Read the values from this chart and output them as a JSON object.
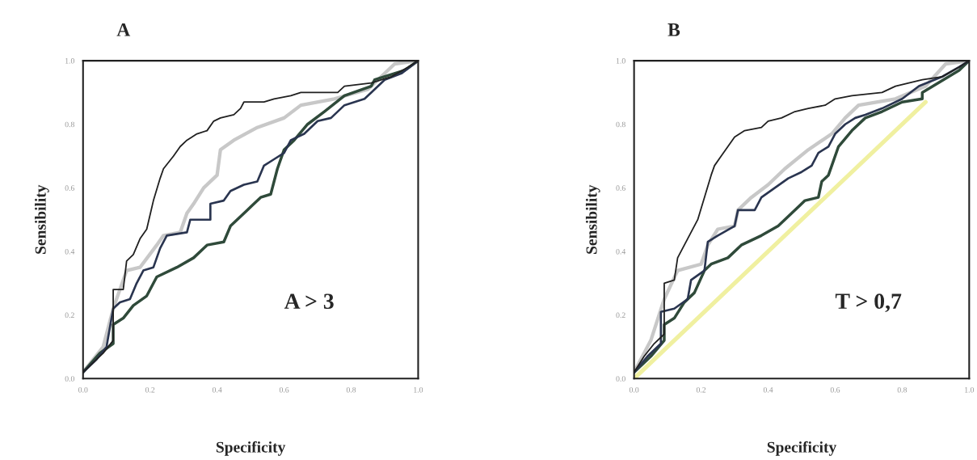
{
  "chart_data": [
    {
      "type": "line",
      "title": "A",
      "xlabel": "Specificity",
      "ylabel": "Sensibility",
      "annotations": [
        "A > 3"
      ],
      "xlim": [
        0,
        1
      ],
      "ylim": [
        0,
        1
      ],
      "xticks": [
        {
          "value": 0,
          "label": "0.0"
        },
        {
          "value": 0.2,
          "label": "0.2"
        },
        {
          "value": 0.4,
          "label": "0.4"
        },
        {
          "value": 0.6,
          "label": "0.6"
        },
        {
          "value": 0.8,
          "label": "0.8"
        },
        {
          "value": 1,
          "label": "1.0"
        }
      ],
      "yticks": [
        {
          "value": 0,
          "label": "0.0"
        },
        {
          "value": 0.2,
          "label": "0.2"
        },
        {
          "value": 0.4,
          "label": "0.4"
        },
        {
          "value": 0.6,
          "label": "0.6"
        },
        {
          "value": 0.8,
          "label": "0.8"
        },
        {
          "value": 1,
          "label": "1.0"
        }
      ],
      "grid": false,
      "legend": false,
      "series": [
        {
          "color": "#c8c8c8",
          "x": [
            0,
            0.06,
            0.09,
            0.13,
            0.17,
            0.22,
            0.24,
            0.29,
            0.31,
            0.33,
            0.36,
            0.4,
            0.41,
            0.45,
            0.52,
            0.6,
            0.65,
            0.75,
            0.85,
            0.93,
            1
          ],
          "values": [
            0.02,
            0.1,
            0.22,
            0.34,
            0.35,
            0.42,
            0.45,
            0.46,
            0.52,
            0.55,
            0.6,
            0.64,
            0.72,
            0.75,
            0.79,
            0.82,
            0.86,
            0.88,
            0.91,
            0.99,
            1
          ]
        },
        {
          "color": "#2f4a3a",
          "x": [
            0,
            0.05,
            0.09,
            0.09,
            0.12,
            0.15,
            0.19,
            0.22,
            0.28,
            0.33,
            0.37,
            0.42,
            0.44,
            0.49,
            0.53,
            0.56,
            0.58,
            0.6,
            0.63,
            0.67,
            0.72,
            0.78,
            0.86,
            0.87,
            0.96,
            1
          ],
          "values": [
            0.02,
            0.08,
            0.11,
            0.17,
            0.19,
            0.23,
            0.26,
            0.32,
            0.35,
            0.38,
            0.42,
            0.43,
            0.48,
            0.53,
            0.57,
            0.58,
            0.66,
            0.72,
            0.75,
            0.8,
            0.84,
            0.89,
            0.92,
            0.94,
            0.97,
            1
          ]
        },
        {
          "color": "#2a3550",
          "x": [
            0,
            0.04,
            0.07,
            0.09,
            0.11,
            0.14,
            0.16,
            0.18,
            0.21,
            0.23,
            0.25,
            0.31,
            0.32,
            0.38,
            0.38,
            0.42,
            0.44,
            0.48,
            0.52,
            0.54,
            0.57,
            0.6,
            0.62,
            0.66,
            0.7,
            0.74,
            0.78,
            0.84,
            0.86,
            0.9,
            0.95,
            1
          ],
          "values": [
            0.02,
            0.06,
            0.1,
            0.22,
            0.24,
            0.25,
            0.3,
            0.34,
            0.35,
            0.41,
            0.45,
            0.46,
            0.5,
            0.5,
            0.55,
            0.56,
            0.59,
            0.61,
            0.62,
            0.67,
            0.69,
            0.71,
            0.75,
            0.77,
            0.81,
            0.82,
            0.86,
            0.88,
            0.9,
            0.94,
            0.96,
            1
          ]
        },
        {
          "color": "#202020",
          "x": [
            0,
            0.03,
            0.06,
            0.09,
            0.09,
            0.12,
            0.13,
            0.15,
            0.17,
            0.19,
            0.21,
            0.23,
            0.24,
            0.27,
            0.29,
            0.31,
            0.34,
            0.37,
            0.39,
            0.41,
            0.45,
            0.47,
            0.48,
            0.54,
            0.57,
            0.62,
            0.65,
            0.76,
            0.78,
            0.86,
            0.92,
            0.97,
            1
          ],
          "values": [
            0.02,
            0.05,
            0.08,
            0.12,
            0.28,
            0.28,
            0.37,
            0.39,
            0.44,
            0.47,
            0.56,
            0.63,
            0.66,
            0.7,
            0.73,
            0.75,
            0.77,
            0.78,
            0.81,
            0.82,
            0.83,
            0.85,
            0.87,
            0.87,
            0.88,
            0.89,
            0.9,
            0.9,
            0.92,
            0.93,
            0.95,
            0.98,
            1
          ]
        }
      ]
    },
    {
      "type": "line",
      "title": "B",
      "xlabel": "Specificity",
      "ylabel": "Sensibility",
      "annotations": [
        "T > 0,7"
      ],
      "xlim": [
        0,
        1
      ],
      "ylim": [
        0,
        1
      ],
      "xticks": [
        {
          "value": 0,
          "label": "0.0"
        },
        {
          "value": 0.2,
          "label": "0.2"
        },
        {
          "value": 0.4,
          "label": "0.4"
        },
        {
          "value": 0.6,
          "label": "0.6"
        },
        {
          "value": 0.8,
          "label": "0.8"
        },
        {
          "value": 1,
          "label": "1.0"
        }
      ],
      "yticks": [
        {
          "value": 0,
          "label": "0.0"
        },
        {
          "value": 0.2,
          "label": "0.2"
        },
        {
          "value": 0.4,
          "label": "0.4"
        },
        {
          "value": 0.6,
          "label": "0.6"
        },
        {
          "value": 0.8,
          "label": "0.8"
        },
        {
          "value": 1,
          "label": "1.0"
        }
      ],
      "grid": false,
      "legend": false,
      "series": [
        {
          "color": "#f0f0a0",
          "x": [
            0,
            0.87
          ],
          "values": [
            0,
            0.87
          ]
        },
        {
          "color": "#c8c8c8",
          "x": [
            0,
            0.05,
            0.09,
            0.13,
            0.2,
            0.22,
            0.25,
            0.3,
            0.31,
            0.35,
            0.4,
            0.45,
            0.52,
            0.59,
            0.63,
            0.67,
            0.78,
            0.87,
            0.93,
            1
          ],
          "values": [
            0.02,
            0.12,
            0.25,
            0.34,
            0.36,
            0.42,
            0.47,
            0.48,
            0.53,
            0.57,
            0.61,
            0.66,
            0.72,
            0.77,
            0.82,
            0.86,
            0.88,
            0.92,
            0.99,
            1
          ]
        },
        {
          "color": "#2f4a3a",
          "x": [
            0,
            0.05,
            0.09,
            0.09,
            0.12,
            0.15,
            0.18,
            0.21,
            0.23,
            0.28,
            0.32,
            0.38,
            0.43,
            0.46,
            0.51,
            0.55,
            0.56,
            0.58,
            0.61,
            0.65,
            0.69,
            0.74,
            0.8,
            0.86,
            0.86,
            0.97,
            1
          ],
          "values": [
            0.02,
            0.07,
            0.12,
            0.17,
            0.19,
            0.24,
            0.27,
            0.34,
            0.36,
            0.38,
            0.42,
            0.45,
            0.48,
            0.51,
            0.56,
            0.57,
            0.62,
            0.64,
            0.73,
            0.78,
            0.82,
            0.84,
            0.87,
            0.88,
            0.9,
            0.97,
            1
          ]
        },
        {
          "color": "#2a3550",
          "x": [
            0,
            0.04,
            0.08,
            0.08,
            0.12,
            0.16,
            0.17,
            0.21,
            0.22,
            0.25,
            0.3,
            0.31,
            0.36,
            0.38,
            0.42,
            0.46,
            0.5,
            0.53,
            0.55,
            0.58,
            0.6,
            0.63,
            0.66,
            0.69,
            0.74,
            0.8,
            0.85,
            0.92,
            0.97,
            1
          ],
          "values": [
            0.02,
            0.07,
            0.11,
            0.21,
            0.22,
            0.25,
            0.31,
            0.34,
            0.43,
            0.45,
            0.48,
            0.53,
            0.53,
            0.57,
            0.6,
            0.63,
            0.65,
            0.67,
            0.71,
            0.73,
            0.77,
            0.8,
            0.82,
            0.83,
            0.85,
            0.88,
            0.92,
            0.95,
            0.98,
            1
          ]
        },
        {
          "color": "#202020",
          "x": [
            0,
            0.03,
            0.06,
            0.09,
            0.09,
            0.12,
            0.13,
            0.15,
            0.17,
            0.19,
            0.21,
            0.23,
            0.24,
            0.26,
            0.28,
            0.3,
            0.33,
            0.38,
            0.4,
            0.44,
            0.48,
            0.52,
            0.57,
            0.6,
            0.65,
            0.74,
            0.78,
            0.82,
            0.86,
            0.92,
            0.97,
            1
          ],
          "values": [
            0.02,
            0.07,
            0.11,
            0.14,
            0.3,
            0.31,
            0.38,
            0.42,
            0.46,
            0.5,
            0.57,
            0.64,
            0.67,
            0.7,
            0.73,
            0.76,
            0.78,
            0.79,
            0.81,
            0.82,
            0.84,
            0.85,
            0.86,
            0.88,
            0.89,
            0.9,
            0.92,
            0.93,
            0.94,
            0.95,
            0.98,
            1
          ]
        }
      ]
    }
  ]
}
